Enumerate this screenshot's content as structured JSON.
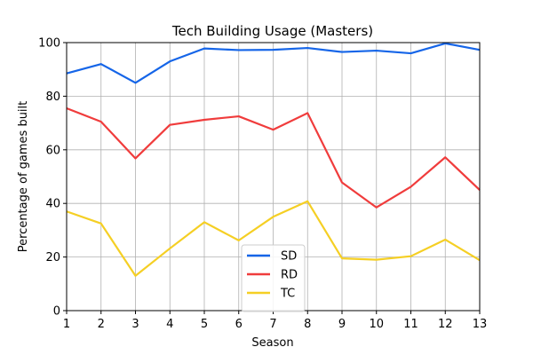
{
  "chart_data": {
    "type": "line",
    "title": "Tech Building Usage (Masters)",
    "xlabel": "Season",
    "ylabel": "Percentage of games built",
    "x": [
      1,
      2,
      3,
      4,
      5,
      6,
      7,
      8,
      9,
      10,
      11,
      12,
      13
    ],
    "xlim": [
      1,
      13
    ],
    "ylim": [
      0,
      100
    ],
    "xticks": [
      1,
      2,
      3,
      4,
      5,
      6,
      7,
      8,
      9,
      10,
      11,
      12,
      13
    ],
    "yticks": [
      0,
      20,
      40,
      60,
      80,
      100
    ],
    "grid": true,
    "legend_position": "lower-center",
    "series": [
      {
        "name": "SD",
        "color": "#1565e8",
        "values": [
          88.5,
          92,
          85,
          93,
          97.8,
          97.2,
          97.3,
          98,
          96.5,
          97,
          96,
          99.7,
          97.3
        ]
      },
      {
        "name": "RD",
        "color": "#f03c3c",
        "values": [
          75.5,
          70.5,
          56.8,
          69.3,
          71.2,
          72.5,
          67.5,
          73.7,
          47.8,
          38.5,
          46.2,
          57.2,
          45
        ]
      },
      {
        "name": "TC",
        "color": "#f5cf24",
        "values": [
          37,
          32.5,
          13,
          23.2,
          33,
          26.2,
          35,
          40.8,
          19.5,
          19,
          20.3,
          26.5,
          18.8
        ]
      }
    ]
  }
}
